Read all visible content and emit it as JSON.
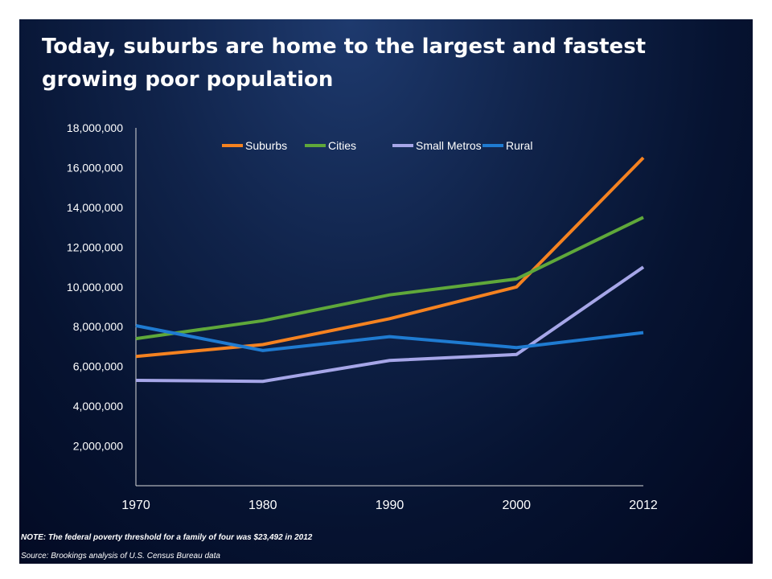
{
  "slide": {
    "title": "Today, suburbs are home to the largest and fastest growing poor population",
    "note": "NOTE: The federal poverty threshold for a family of four was $23,492 in 2012",
    "source": "Source: Brookings analysis of U.S. Census Bureau data"
  },
  "chart_data": {
    "type": "line",
    "title": "Today, suburbs are home to the largest and fastest growing poor population",
    "xlabel": "",
    "ylabel": "",
    "categories": [
      "1970",
      "1980",
      "1990",
      "2000",
      "2012"
    ],
    "yticks": [
      2000000,
      4000000,
      6000000,
      8000000,
      10000000,
      12000000,
      14000000,
      16000000,
      18000000
    ],
    "ytick_labels": [
      "2,000,000",
      "4,000,000",
      "6,000,000",
      "8,000,000",
      "10,000,000",
      "12,000,000",
      "14,000,000",
      "16,000,000",
      "18,000,000"
    ],
    "ylim": [
      0,
      18000000
    ],
    "grid": false,
    "legend_position": "top",
    "series": [
      {
        "name": "Suburbs",
        "color": "#f58220",
        "values": [
          6500000,
          7100000,
          8400000,
          10000000,
          16500000
        ]
      },
      {
        "name": "Cities",
        "color": "#5fa83a",
        "values": [
          7400000,
          8300000,
          9600000,
          10400000,
          13500000
        ]
      },
      {
        "name": "Small Metros",
        "color": "#a6a6e8",
        "values": [
          5300000,
          5250000,
          6300000,
          6600000,
          11000000
        ]
      },
      {
        "name": "Rural",
        "color": "#1f7bd1",
        "values": [
          8050000,
          6800000,
          7500000,
          6950000,
          7700000
        ]
      }
    ]
  }
}
